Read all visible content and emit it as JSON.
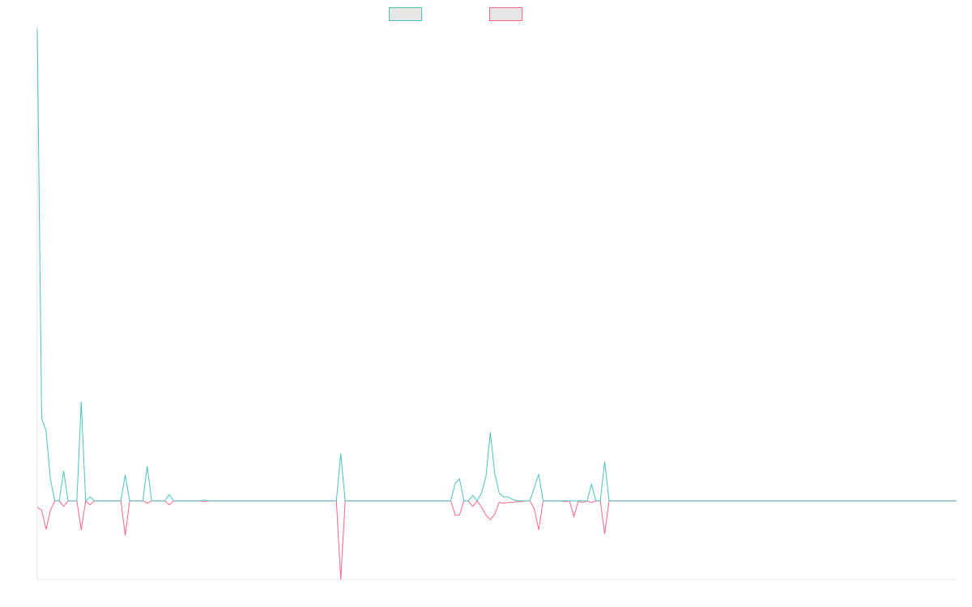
{
  "chart_data": {
    "type": "line",
    "title": "",
    "xlabel": "",
    "ylabel": "",
    "ylim": [
      -1,
      6
    ],
    "grid": false,
    "legend_position": "top-center",
    "series": [
      {
        "name": "",
        "color": "#4bc0c0",
        "fill": "#e6e6e6",
        "values": [
          6.0,
          1.05,
          0.89,
          0.27,
          0,
          0,
          0.38,
          0,
          0,
          0,
          1.26,
          0,
          0.05,
          0,
          0,
          0,
          0,
          0,
          0,
          0,
          0.33,
          0,
          0,
          0,
          0,
          0.44,
          0,
          0,
          0,
          0,
          0.08,
          0,
          0,
          0,
          0,
          0,
          0,
          0,
          0.01,
          0,
          0,
          0,
          0,
          0,
          0,
          0,
          0,
          0,
          0,
          0,
          0,
          0,
          0,
          0,
          0,
          0,
          0,
          0,
          0,
          0,
          0,
          0,
          0,
          0,
          0,
          0,
          0,
          0,
          0,
          0.6,
          0,
          0,
          0,
          0,
          0,
          0,
          0,
          0,
          0,
          0,
          0,
          0,
          0,
          0,
          0,
          0,
          0,
          0,
          0,
          0,
          0,
          0,
          0,
          0,
          0,
          0.22,
          0.28,
          0,
          0,
          0.07,
          0,
          0.1,
          0.31,
          0.87,
          0.35,
          0.1,
          0.05,
          0.05,
          0.02,
          0,
          0,
          0,
          0,
          0.17,
          0.34,
          0,
          0,
          0,
          0,
          0,
          0,
          0,
          0,
          0,
          0,
          0,
          0.21,
          0,
          0,
          0.5,
          0,
          0,
          0,
          0,
          0,
          0,
          0,
          0,
          0,
          0,
          0,
          0,
          0,
          0,
          0,
          0,
          0,
          0,
          0,
          0,
          0,
          0,
          0,
          0,
          0,
          0,
          0,
          0,
          0,
          0,
          0,
          0,
          0,
          0,
          0,
          0,
          0,
          0,
          0,
          0,
          0,
          0,
          0,
          0,
          0,
          0,
          0,
          0,
          0,
          0,
          0,
          0,
          0,
          0,
          0,
          0,
          0,
          0,
          0,
          0,
          0,
          0,
          0,
          0,
          0,
          0,
          0,
          0,
          0,
          0,
          0,
          0,
          0,
          0,
          0,
          0,
          0,
          0,
          0,
          0
        ]
      },
      {
        "name": "",
        "color": "#ff6384",
        "fill": "#e6e6e6",
        "values": [
          -0.08,
          -0.12,
          -0.36,
          -0.12,
          0,
          0,
          -0.07,
          0,
          0,
          0,
          -0.37,
          0,
          -0.05,
          0,
          0,
          0,
          0,
          0,
          0,
          0,
          -0.44,
          0,
          0,
          0,
          0,
          -0.03,
          0,
          0,
          0,
          0,
          -0.05,
          0,
          0,
          0,
          0,
          0,
          0,
          0,
          -0.01,
          0,
          0,
          0,
          0,
          0,
          0,
          0,
          0,
          0,
          0,
          0,
          0,
          0,
          0,
          0,
          0,
          0,
          0,
          0,
          0,
          0,
          0,
          0,
          0,
          0,
          0,
          0,
          0,
          0,
          0,
          -1.0,
          0,
          0,
          0,
          0,
          0,
          0,
          0,
          0,
          0,
          0,
          0,
          0,
          0,
          0,
          0,
          0,
          0,
          0,
          0,
          0,
          0,
          0,
          0,
          0,
          0,
          -0.18,
          -0.18,
          0,
          0,
          -0.07,
          0,
          -0.08,
          -0.18,
          -0.24,
          -0.17,
          -0.02,
          -0.03,
          -0.02,
          -0.02,
          -0.01,
          -0.01,
          0,
          0,
          -0.1,
          -0.37,
          0,
          0,
          0,
          0,
          0,
          -0.01,
          0,
          -0.2,
          0,
          -0.02,
          0,
          -0.02,
          0,
          0,
          -0.42,
          0,
          0,
          0,
          0,
          0,
          0,
          0,
          0,
          0,
          0,
          0,
          0,
          0,
          0,
          0,
          0,
          0,
          0,
          0,
          0,
          0,
          0,
          0,
          0,
          0,
          0,
          0,
          0,
          0,
          0,
          0,
          0,
          0,
          0,
          0,
          0,
          0,
          0,
          0,
          0,
          0,
          0,
          0,
          0,
          0,
          0,
          0,
          0,
          0,
          0,
          0,
          0,
          0,
          0,
          0,
          0,
          0,
          0,
          0,
          0,
          0,
          0,
          0,
          0,
          0,
          0,
          0,
          0,
          0,
          0,
          0,
          0,
          0,
          0,
          0,
          0,
          0,
          0,
          0,
          0
        ]
      }
    ]
  }
}
